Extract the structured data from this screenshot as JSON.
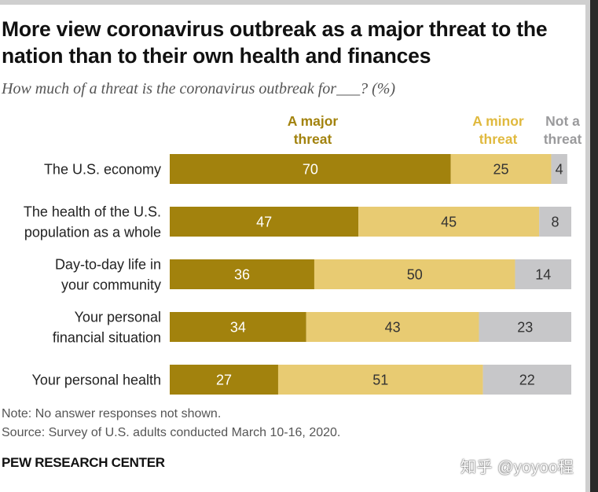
{
  "chart_data": {
    "type": "bar",
    "orientation": "horizontal",
    "stacked": true,
    "title": "More view coronavirus outbreak as a major threat to the nation than to their own health and finances",
    "subtitle": "How much of a threat is the coronavirus outbreak for___? (%)",
    "categories": [
      "The U.S. economy",
      "The health of the U.S. population as a whole",
      "Day-to-day life in your community",
      "Your personal financial situation",
      "Your personal health"
    ],
    "category_lines": [
      [
        "The U.S. economy"
      ],
      [
        "The health of the U.S.",
        "population as a whole"
      ],
      [
        "Day-to-day life in",
        "your community"
      ],
      [
        "Your personal",
        "financial situation"
      ],
      [
        "Your personal health"
      ]
    ],
    "series": [
      {
        "name": "A major threat",
        "label_lines": [
          "A major",
          "threat"
        ],
        "color": "#a2820d",
        "values": [
          70,
          47,
          36,
          34,
          27
        ]
      },
      {
        "name": "A minor threat",
        "label_lines": [
          "A minor",
          "threat"
        ],
        "color": "#e8cb72",
        "values": [
          25,
          45,
          50,
          43,
          51
        ]
      },
      {
        "name": "Not a threat",
        "label_lines": [
          "Not a",
          "threat"
        ],
        "color": "#c7c7c9",
        "values": [
          4,
          8,
          14,
          23,
          22
        ]
      }
    ],
    "label_colors": {
      "A major threat": "#ffffff",
      "A minor threat": "#333333",
      "Not a threat": "#333333"
    },
    "legend_colors": {
      "A major threat": "#a2820d",
      "A minor threat": "#e0b93e",
      "Not a threat": "#9a9a9c"
    },
    "xlim": [
      0,
      100
    ]
  },
  "footer": {
    "note": "Note: No answer responses not shown.",
    "source": "Source: Survey of U.S. adults conducted March 10-16, 2020.",
    "brand": "PEW RESEARCH CENTER"
  },
  "watermark": "知乎 @yoyoo程"
}
